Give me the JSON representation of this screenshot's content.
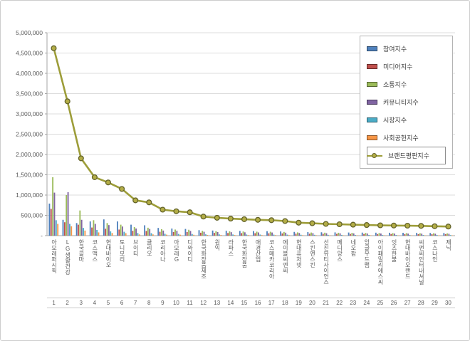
{
  "chart_data": {
    "type": "combo_bar_line",
    "title": "",
    "categories": [
      "아모레퍼시픽",
      "LG생활건강",
      "한국콜마",
      "코스맥스",
      "현대바이오",
      "토니모리",
      "브이티",
      "클리오",
      "코리아나",
      "아모레G",
      "디와이디",
      "한국화장품제조",
      "원익",
      "라파스",
      "한국화장품",
      "애경산업",
      "코스메카코리아",
      "에이블씨엔씨",
      "현대퓨처넷",
      "스킨앤스킨",
      "선진뷰티사이언스",
      "메디앙스",
      "네오팜",
      "잉글우드랩",
      "아이패밀리에스씨",
      "잇츠한불",
      "현대바이오랜드",
      "씨앤씨인터내셔널",
      "코스나인",
      "제닉"
    ],
    "category_numbers": [
      "1",
      "2",
      "3",
      "4",
      "5",
      "6",
      "7",
      "8",
      "9",
      "10",
      "11",
      "12",
      "13",
      "14",
      "15",
      "16",
      "17",
      "18",
      "19",
      "20",
      "21",
      "22",
      "23",
      "24",
      "25",
      "26",
      "27",
      "28",
      "29",
      "30"
    ],
    "y_axis": {
      "min": 0,
      "max": 5000000,
      "step": 500000,
      "tick_labels": [
        "-",
        "500,000",
        "1,000,000",
        "1,500,000",
        "2,000,000",
        "2,500,000",
        "3,000,000",
        "3,500,000",
        "4,000,000",
        "4,500,000",
        "5,000,000"
      ]
    },
    "grid": true,
    "legend_position": "top-right",
    "series": [
      {
        "name": "참여지수",
        "type": "bar",
        "color": "#4F81BD",
        "values": [
          790000,
          390000,
          310000,
          350000,
          400000,
          350000,
          270000,
          255000,
          190000,
          175000,
          165000,
          135000,
          126000,
          120000,
          116000,
          112000,
          109000,
          103000,
          92000,
          87000,
          83000,
          80000,
          77000,
          75000,
          73000,
          71000,
          70000,
          68000,
          66000,
          64000
        ]
      },
      {
        "name": "미디어지수",
        "type": "bar",
        "color": "#C0504D",
        "values": [
          660000,
          330000,
          270000,
          200000,
          170000,
          150000,
          120000,
          115000,
          95000,
          90000,
          88000,
          72000,
          68000,
          65000,
          62000,
          60000,
          58000,
          55000,
          49000,
          47000,
          45000,
          43000,
          42000,
          40000,
          39000,
          39000,
          38000,
          37000,
          36000,
          35000
        ]
      },
      {
        "name": "소통지수",
        "type": "bar",
        "color": "#9BBB59",
        "values": [
          1440000,
          1000000,
          620000,
          380000,
          310000,
          270000,
          210000,
          195000,
          160000,
          150000,
          145000,
          118000,
          110000,
          105000,
          102000,
          98000,
          96000,
          91000,
          80000,
          77000,
          73000,
          71000,
          68000,
          66000,
          64000,
          63000,
          62000,
          60000,
          58000,
          56000
        ]
      },
      {
        "name": "커뮤니티지수",
        "type": "bar",
        "color": "#8064A2",
        "values": [
          1060000,
          1070000,
          390000,
          290000,
          260000,
          225000,
          175000,
          165000,
          125000,
          120000,
          115000,
          95000,
          89000,
          85000,
          82000,
          79000,
          77000,
          73000,
          65000,
          62000,
          59000,
          57000,
          55000,
          53000,
          52000,
          51000,
          50000,
          49000,
          47000,
          46000
        ]
      },
      {
        "name": "시장지수",
        "type": "bar",
        "color": "#4BACC6",
        "values": [
          380000,
          290000,
          190000,
          140000,
          105000,
          95000,
          65000,
          60000,
          45000,
          42000,
          40000,
          32000,
          30000,
          29000,
          28000,
          27000,
          26000,
          25000,
          22000,
          21000,
          20000,
          19000,
          18000,
          18000,
          17000,
          17000,
          16000,
          17000,
          16000,
          15000
        ]
      },
      {
        "name": "사회공헌지수",
        "type": "bar",
        "color": "#F79646",
        "values": [
          290000,
          230000,
          125000,
          80000,
          65000,
          60000,
          30000,
          30000,
          25000,
          23000,
          22000,
          18000,
          17000,
          16000,
          15000,
          14000,
          14000,
          13000,
          12000,
          11000,
          10000,
          10000,
          10000,
          10000,
          10000,
          9000,
          9000,
          9000,
          9000,
          9000
        ]
      },
      {
        "name": "브랜드평판지수",
        "type": "line",
        "color": "#9D9D39",
        "marker_fill": "#B3AD46",
        "marker_stroke": "#63632A",
        "values": [
          4620000,
          3310000,
          1905000,
          1440000,
          1310000,
          1150000,
          870000,
          820000,
          640000,
          600000,
          575000,
          470000,
          440000,
          420000,
          405000,
          390000,
          380000,
          360000,
          320000,
          305000,
          290000,
          280000,
          270000,
          262000,
          255000,
          250000,
          245000,
          240000,
          232000,
          225000
        ]
      }
    ]
  }
}
